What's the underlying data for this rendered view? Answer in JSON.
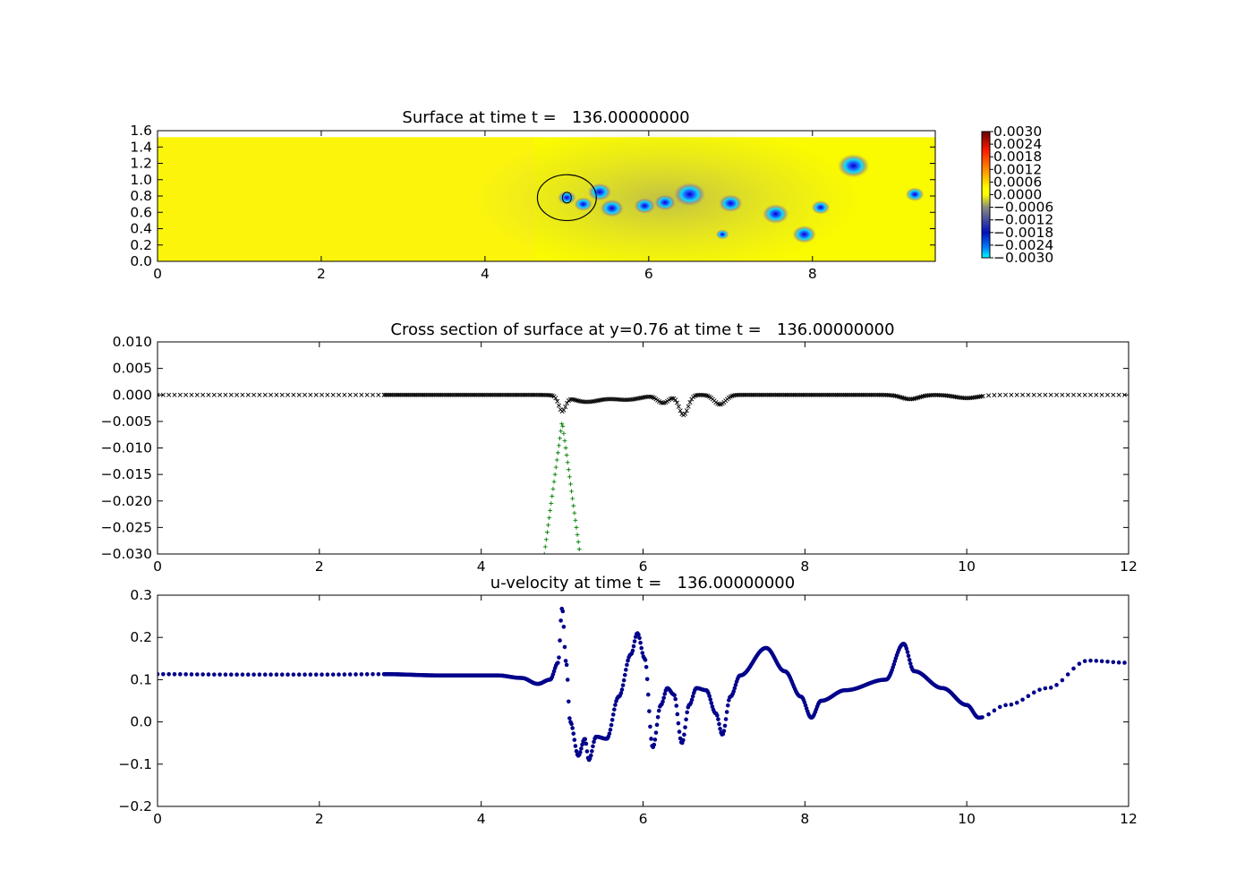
{
  "chart_data": [
    {
      "type": "heatmap",
      "title": "Surface at time t =   136.00000000",
      "xlim": [
        0,
        9.5
      ],
      "ylim": [
        0,
        1.6
      ],
      "x_ticks": [
        "0",
        "2",
        "4",
        "6",
        "8"
      ],
      "y_ticks": [
        "0.0",
        "0.2",
        "0.4",
        "0.6",
        "0.8",
        "1.0",
        "1.2",
        "1.4",
        "1.6"
      ],
      "colorbar": {
        "min": -0.003,
        "max": 0.003,
        "labels": [
          "0.0030",
          "0.0024",
          "0.0018",
          "0.0012",
          "0.0006",
          "0.0000",
          "−0.0006",
          "−0.0012",
          "−0.0018",
          "−0.0024",
          "−0.0030"
        ]
      },
      "field_extent": {
        "xmax": 9.5,
        "ymax": 1.52
      },
      "circle": {
        "cx": 5.0,
        "cy": 0.78,
        "r": 0.36
      },
      "depressions": [
        {
          "x": 5.0,
          "y": 0.78,
          "r": 0.07
        },
        {
          "x": 5.2,
          "y": 0.7,
          "r": 0.07
        },
        {
          "x": 5.4,
          "y": 0.85,
          "r": 0.09
        },
        {
          "x": 5.55,
          "y": 0.65,
          "r": 0.09
        },
        {
          "x": 5.95,
          "y": 0.68,
          "r": 0.08
        },
        {
          "x": 6.2,
          "y": 0.72,
          "r": 0.08
        },
        {
          "x": 6.5,
          "y": 0.82,
          "r": 0.12
        },
        {
          "x": 7.0,
          "y": 0.71,
          "r": 0.09
        },
        {
          "x": 7.55,
          "y": 0.58,
          "r": 0.1
        },
        {
          "x": 6.9,
          "y": 0.33,
          "r": 0.05
        },
        {
          "x": 7.9,
          "y": 0.33,
          "r": 0.09
        },
        {
          "x": 8.1,
          "y": 0.66,
          "r": 0.07
        },
        {
          "x": 8.5,
          "y": 1.17,
          "r": 0.12
        },
        {
          "x": 9.25,
          "y": 0.82,
          "r": 0.07
        }
      ]
    },
    {
      "type": "scatter",
      "title": "Cross section of surface at y=0.76 at time t =   136.00000000",
      "xlim": [
        0,
        12
      ],
      "ylim": [
        -0.03,
        0.01
      ],
      "x_ticks": [
        "0",
        "2",
        "4",
        "6",
        "8",
        "10",
        "12"
      ],
      "y_ticks": [
        "0.010",
        "0.005",
        "0.000",
        "−0.005",
        "−0.010",
        "−0.015",
        "−0.020",
        "−0.025",
        "−0.030"
      ],
      "series": [
        {
          "marker": "x",
          "color": "#000000",
          "sparse_x_spacing": 0.07,
          "dense_x_range": [
            2.8,
            10.2
          ],
          "dense_x_spacing": 0.02,
          "dips": [
            {
              "x": 5.0,
              "depth": -0.0028,
              "width": 0.06
            },
            {
              "x": 5.3,
              "depth": -0.0013,
              "width": 0.25
            },
            {
              "x": 5.8,
              "depth": -0.0009,
              "width": 0.25
            },
            {
              "x": 6.25,
              "depth": -0.0015,
              "width": 0.1
            },
            {
              "x": 6.5,
              "depth": -0.0038,
              "width": 0.08
            },
            {
              "x": 6.95,
              "depth": -0.0018,
              "width": 0.1
            },
            {
              "x": 9.3,
              "depth": -0.0008,
              "width": 0.15
            },
            {
              "x": 10.0,
              "depth": -0.0006,
              "width": 0.2
            }
          ]
        },
        {
          "marker": "+",
          "color": "#007f00",
          "peak_x": 5.0,
          "peak_y": -0.005,
          "half_width_at_axis_bottom": 0.22,
          "x_range": [
            4.78,
            5.22
          ],
          "x_spacing": 0.012
        }
      ]
    },
    {
      "type": "scatter",
      "title": "u-velocity at time t =   136.00000000",
      "xlim": [
        0,
        12
      ],
      "ylim": [
        -0.2,
        0.3
      ],
      "x_ticks": [
        "0",
        "2",
        "4",
        "6",
        "8",
        "10",
        "12"
      ],
      "y_ticks": [
        "0.3",
        "0.2",
        "0.1",
        "0.0",
        "−0.1",
        "−0.2"
      ],
      "series": [
        {
          "marker": "o",
          "color": "#00008b",
          "points": [
            [
              0,
              0.113
            ],
            [
              1,
              0.112
            ],
            [
              2,
              0.112
            ],
            [
              2.8,
              0.113
            ],
            [
              3.5,
              0.11
            ],
            [
              4.2,
              0.11
            ],
            [
              4.5,
              0.104
            ],
            [
              4.7,
              0.09
            ],
            [
              4.85,
              0.1
            ],
            [
              4.95,
              0.14
            ],
            [
              5.0,
              0.27
            ],
            [
              5.05,
              0.14
            ],
            [
              5.1,
              0.0
            ],
            [
              5.2,
              -0.08
            ],
            [
              5.28,
              -0.04
            ],
            [
              5.33,
              -0.09
            ],
            [
              5.42,
              -0.035
            ],
            [
              5.55,
              -0.04
            ],
            [
              5.7,
              0.06
            ],
            [
              5.85,
              0.16
            ],
            [
              5.93,
              0.21
            ],
            [
              6.02,
              0.15
            ],
            [
              6.12,
              -0.06
            ],
            [
              6.22,
              0.04
            ],
            [
              6.3,
              0.08
            ],
            [
              6.38,
              0.065
            ],
            [
              6.48,
              -0.05
            ],
            [
              6.57,
              0.04
            ],
            [
              6.66,
              0.08
            ],
            [
              6.78,
              0.075
            ],
            [
              6.9,
              0.02
            ],
            [
              6.98,
              -0.03
            ],
            [
              7.08,
              0.06
            ],
            [
              7.2,
              0.11
            ],
            [
              7.52,
              0.175
            ],
            [
              7.75,
              0.12
            ],
            [
              7.95,
              0.06
            ],
            [
              8.08,
              0.01
            ],
            [
              8.2,
              0.05
            ],
            [
              8.5,
              0.075
            ],
            [
              9.0,
              0.1
            ],
            [
              9.22,
              0.185
            ],
            [
              9.35,
              0.12
            ],
            [
              9.7,
              0.08
            ],
            [
              10.0,
              0.04
            ],
            [
              10.15,
              0.01
            ],
            [
              10.5,
              0.04
            ],
            [
              11.0,
              0.08
            ],
            [
              11.5,
              0.145
            ],
            [
              12.0,
              0.14
            ]
          ]
        }
      ]
    }
  ]
}
